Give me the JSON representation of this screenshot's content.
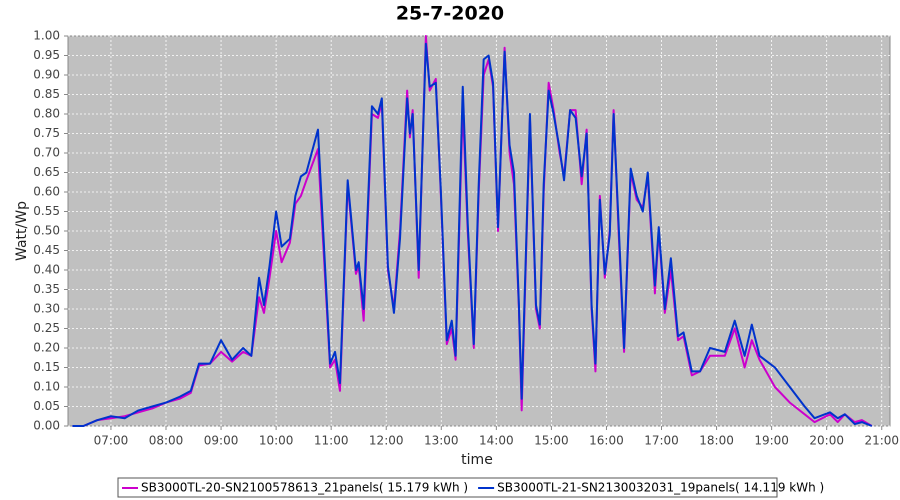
{
  "chart_data": {
    "type": "line",
    "title": "25-7-2020",
    "x_label": "time",
    "y_label": "Watt/Wp",
    "x": [
      6.3,
      6.5,
      6.75,
      7.0,
      7.25,
      7.5,
      7.75,
      8.0,
      8.25,
      8.45,
      8.6,
      8.8,
      9.0,
      9.2,
      9.4,
      9.55,
      9.69,
      9.78,
      9.88,
      10.0,
      10.1,
      10.25,
      10.35,
      10.45,
      10.55,
      10.76,
      10.98,
      11.07,
      11.16,
      11.3,
      11.45,
      11.5,
      11.59,
      11.74,
      11.85,
      11.92,
      12.03,
      12.14,
      12.25,
      12.38,
      12.43,
      12.48,
      12.59,
      12.72,
      12.79,
      12.9,
      12.99,
      13.1,
      13.19,
      13.26,
      13.39,
      13.48,
      13.59,
      13.68,
      13.77,
      13.86,
      13.94,
      14.03,
      14.15,
      14.24,
      14.32,
      14.41,
      14.46,
      14.61,
      14.72,
      14.79,
      14.86,
      14.95,
      15.04,
      15.15,
      15.23,
      15.34,
      15.44,
      15.55,
      15.64,
      15.73,
      15.8,
      15.88,
      15.97,
      16.06,
      16.13,
      16.22,
      16.32,
      16.44,
      16.55,
      16.66,
      16.75,
      16.88,
      16.95,
      17.06,
      17.17,
      17.3,
      17.4,
      17.55,
      17.7,
      17.88,
      18.15,
      18.33,
      18.51,
      18.64,
      18.78,
      19.06,
      19.33,
      19.6,
      19.78,
      20.06,
      20.2,
      20.33,
      20.51,
      20.64,
      20.82
    ],
    "series": [
      {
        "name": "SB3000TL-20-SN2100578613_21panels( 15.179 kWh )",
        "color": "#cc00cc",
        "values": [
          0,
          0,
          0.015,
          0.02,
          0.025,
          0.035,
          0.045,
          0.06,
          0.07,
          0.085,
          0.155,
          0.16,
          0.19,
          0.165,
          0.19,
          0.18,
          0.33,
          0.29,
          0.38,
          0.5,
          0.42,
          0.47,
          0.57,
          0.59,
          0.63,
          0.71,
          0.15,
          0.17,
          0.09,
          0.62,
          0.39,
          0.41,
          0.27,
          0.8,
          0.79,
          0.83,
          0.4,
          0.3,
          0.5,
          0.86,
          0.74,
          0.81,
          0.38,
          1.0,
          0.86,
          0.89,
          0.6,
          0.21,
          0.25,
          0.17,
          0.82,
          0.5,
          0.2,
          0.6,
          0.9,
          0.94,
          0.87,
          0.5,
          0.97,
          0.7,
          0.62,
          0.3,
          0.04,
          0.79,
          0.3,
          0.25,
          0.6,
          0.88,
          0.81,
          0.7,
          0.64,
          0.81,
          0.81,
          0.62,
          0.76,
          0.3,
          0.14,
          0.59,
          0.38,
          0.5,
          0.81,
          0.5,
          0.19,
          0.65,
          0.58,
          0.56,
          0.64,
          0.34,
          0.5,
          0.29,
          0.4,
          0.22,
          0.23,
          0.13,
          0.14,
          0.18,
          0.18,
          0.25,
          0.15,
          0.22,
          0.17,
          0.1,
          0.06,
          0.03,
          0.01,
          0.03,
          0.01,
          0.03,
          0.01,
          0.015,
          0
        ]
      },
      {
        "name": "SB3000TL-21-SN2130032031_19panels( 14.119 kWh )",
        "color": "#0033cc",
        "values": [
          0,
          0,
          0.015,
          0.025,
          0.02,
          0.04,
          0.05,
          0.06,
          0.075,
          0.09,
          0.16,
          0.16,
          0.22,
          0.17,
          0.2,
          0.18,
          0.38,
          0.31,
          0.41,
          0.55,
          0.46,
          0.48,
          0.59,
          0.64,
          0.65,
          0.76,
          0.16,
          0.19,
          0.11,
          0.63,
          0.4,
          0.42,
          0.3,
          0.82,
          0.8,
          0.84,
          0.41,
          0.29,
          0.48,
          0.84,
          0.75,
          0.8,
          0.4,
          0.98,
          0.87,
          0.88,
          0.61,
          0.22,
          0.27,
          0.18,
          0.87,
          0.52,
          0.21,
          0.62,
          0.94,
          0.95,
          0.88,
          0.51,
          0.96,
          0.72,
          0.65,
          0.31,
          0.07,
          0.8,
          0.31,
          0.26,
          0.62,
          0.86,
          0.8,
          0.71,
          0.63,
          0.81,
          0.79,
          0.64,
          0.75,
          0.31,
          0.16,
          0.58,
          0.39,
          0.49,
          0.8,
          0.52,
          0.2,
          0.66,
          0.59,
          0.55,
          0.65,
          0.36,
          0.51,
          0.3,
          0.43,
          0.23,
          0.24,
          0.14,
          0.14,
          0.2,
          0.19,
          0.27,
          0.18,
          0.26,
          0.18,
          0.15,
          0.1,
          0.05,
          0.02,
          0.035,
          0.02,
          0.03,
          0.005,
          0.01,
          0
        ]
      }
    ],
    "xlim": [
      6.22,
      21.15
    ],
    "xticks": [
      {
        "value": 7,
        "label": "07:00"
      },
      {
        "value": 8,
        "label": "08:00"
      },
      {
        "value": 9,
        "label": "09:00"
      },
      {
        "value": 10,
        "label": "10:00"
      },
      {
        "value": 11,
        "label": "11:00"
      },
      {
        "value": 12,
        "label": "12:00"
      },
      {
        "value": 13,
        "label": "13:00"
      },
      {
        "value": 14,
        "label": "14:00"
      },
      {
        "value": 15,
        "label": "15:00"
      },
      {
        "value": 16,
        "label": "16:00"
      },
      {
        "value": 17,
        "label": "17:00"
      },
      {
        "value": 18,
        "label": "18:00"
      },
      {
        "value": 19,
        "label": "19:00"
      },
      {
        "value": 20,
        "label": "20:00"
      },
      {
        "value": 21,
        "label": "21:00"
      }
    ],
    "ylim": [
      0,
      1
    ],
    "yticks": [
      {
        "value": 0,
        "label": "0.00"
      },
      {
        "value": 0.05,
        "label": "0.05"
      },
      {
        "value": 0.1,
        "label": "0.10"
      },
      {
        "value": 0.15,
        "label": "0.15"
      },
      {
        "value": 0.2,
        "label": "0.20"
      },
      {
        "value": 0.25,
        "label": "0.25"
      },
      {
        "value": 0.3,
        "label": "0.30"
      },
      {
        "value": 0.35,
        "label": "0.35"
      },
      {
        "value": 0.4,
        "label": "0.40"
      },
      {
        "value": 0.45,
        "label": "0.45"
      },
      {
        "value": 0.5,
        "label": "0.50"
      },
      {
        "value": 0.55,
        "label": "0.55"
      },
      {
        "value": 0.6,
        "label": "0.60"
      },
      {
        "value": 0.65,
        "label": "0.65"
      },
      {
        "value": 0.7,
        "label": "0.70"
      },
      {
        "value": 0.75,
        "label": "0.75"
      },
      {
        "value": 0.8,
        "label": "0.80"
      },
      {
        "value": 0.85,
        "label": "0.85"
      },
      {
        "value": 0.9,
        "label": "0.90"
      },
      {
        "value": 0.95,
        "label": "0.95"
      },
      {
        "value": 1,
        "label": "1.00"
      }
    ],
    "grid": true,
    "legend": "bottom"
  }
}
